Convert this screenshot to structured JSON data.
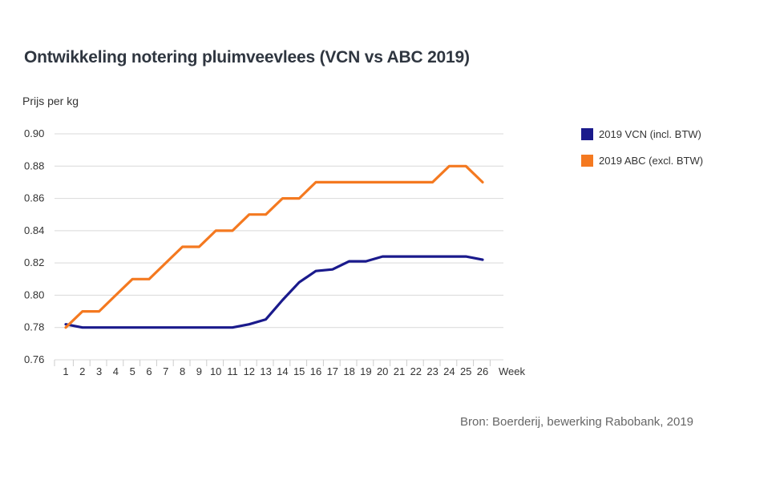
{
  "chart_data": {
    "type": "line",
    "title": "Ontwikkeling notering pluimveevlees (VCN vs ABC 2019)",
    "ylabel": "Prijs per kg",
    "xlabel": "Week",
    "source": "Bron: Boerderij, bewerking Rabobank, 2019",
    "ylim": [
      0.76,
      0.9
    ],
    "yticks": [
      "0.90",
      "0.88",
      "0.86",
      "0.84",
      "0.82",
      "0.80",
      "0.78",
      "0.76"
    ],
    "x": [
      1,
      2,
      3,
      4,
      5,
      6,
      7,
      8,
      9,
      10,
      11,
      12,
      13,
      14,
      15,
      16,
      17,
      18,
      19,
      20,
      21,
      22,
      23,
      24,
      25,
      26
    ],
    "grid": true,
    "legend_position": "right",
    "series": [
      {
        "name": "2019 VCN (incl. BTW)",
        "color": "#1a1a8c",
        "values": [
          0.782,
          0.78,
          0.78,
          0.78,
          0.78,
          0.78,
          0.78,
          0.78,
          0.78,
          0.78,
          0.78,
          0.782,
          0.785,
          0.797,
          0.808,
          0.815,
          0.816,
          0.821,
          0.821,
          0.824,
          0.824,
          0.824,
          0.824,
          0.824,
          0.824,
          0.822
        ]
      },
      {
        "name": "2019 ABC (excl. BTW)",
        "color": "#f47920",
        "values": [
          0.78,
          0.79,
          0.79,
          0.8,
          0.81,
          0.81,
          0.82,
          0.83,
          0.83,
          0.84,
          0.84,
          0.85,
          0.85,
          0.86,
          0.86,
          0.87,
          0.87,
          0.87,
          0.87,
          0.87,
          0.87,
          0.87,
          0.87,
          0.88,
          0.88,
          0.87
        ]
      }
    ]
  }
}
